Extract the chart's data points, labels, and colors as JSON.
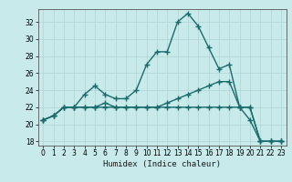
{
  "title": "",
  "xlabel": "Humidex (Indice chaleur)",
  "ylabel": "",
  "background_color": "#c8eaea",
  "grid_color": "#aed4d4",
  "line_color": "#1a6b6b",
  "xlim": [
    -0.5,
    23.5
  ],
  "ylim": [
    17.5,
    33.5
  ],
  "xticks": [
    0,
    1,
    2,
    3,
    4,
    5,
    6,
    7,
    8,
    9,
    10,
    11,
    12,
    13,
    14,
    15,
    16,
    17,
    18,
    19,
    20,
    21,
    22,
    23
  ],
  "yticks": [
    18,
    20,
    22,
    24,
    26,
    28,
    30,
    32
  ],
  "series": [
    [
      20.5,
      21.0,
      22.0,
      22.0,
      23.5,
      24.5,
      23.5,
      23.0,
      23.0,
      24.0,
      27.0,
      28.5,
      28.5,
      32.0,
      33.0,
      31.5,
      29.0,
      26.5,
      27.0,
      22.0,
      20.5,
      18.0,
      18.0,
      18.0
    ],
    [
      20.5,
      21.0,
      22.0,
      22.0,
      22.0,
      22.0,
      22.0,
      22.0,
      22.0,
      22.0,
      22.0,
      22.0,
      22.5,
      23.0,
      23.5,
      24.0,
      24.5,
      25.0,
      25.0,
      22.0,
      22.0,
      18.0,
      18.0,
      18.0
    ],
    [
      20.5,
      21.0,
      22.0,
      22.0,
      22.0,
      22.0,
      22.5,
      22.0,
      22.0,
      22.0,
      22.0,
      22.0,
      22.0,
      22.0,
      22.0,
      22.0,
      22.0,
      22.0,
      22.0,
      22.0,
      22.0,
      18.0,
      18.0,
      18.0
    ]
  ],
  "marker": "+",
  "markersize": 4,
  "linewidth": 1.0,
  "tick_labelsize": 5.5,
  "xlabel_fontsize": 6.5
}
